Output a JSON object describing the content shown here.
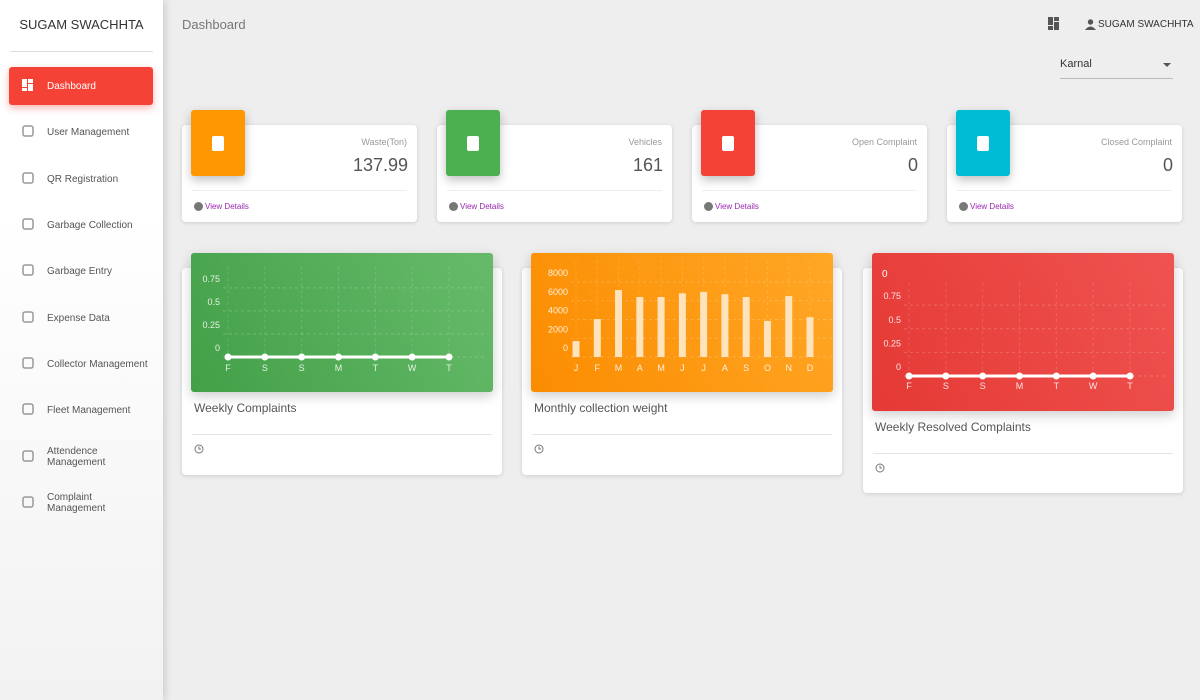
{
  "sidebar": {
    "title": "SUGAM SWACHHTA",
    "menu": [
      "Dashboard",
      "User Management",
      "QR Registration",
      "Garbage Collection",
      "Garbage Entry",
      "Expense Data",
      "Collector Management",
      "Fleet Management",
      "Attendence Management",
      "Complaint Management"
    ]
  },
  "header": {
    "page_title": "Dashboard",
    "user": "SUGAM SWACHHTA",
    "location": "Karnal"
  },
  "stats": [
    {
      "label": "Waste(Ton)",
      "value": 137.99,
      "link": "View Details"
    },
    {
      "label": "Vehicles",
      "value": 161,
      "link": "View Details"
    },
    {
      "label": "Open Complaint",
      "value": 0,
      "link": "View Details"
    },
    {
      "label": "Closed Complaint",
      "value": 0,
      "link": "View Details"
    }
  ],
  "chart_data": [
    {
      "type": "line",
      "title": "Weekly Complaints",
      "categories": [
        "F",
        "S",
        "S",
        "M",
        "T",
        "W",
        "T"
      ],
      "values": [
        0,
        0,
        0,
        0,
        0,
        0,
        0
      ],
      "ylim": [
        0,
        0.9
      ],
      "yticks": [
        0,
        0.25,
        0.5,
        0.75
      ],
      "color": "#ffffff",
      "grid": true
    },
    {
      "type": "bar",
      "title": "Monthly collection weight",
      "categories": [
        "J",
        "F",
        "M",
        "A",
        "M",
        "J",
        "J",
        "A",
        "S",
        "O",
        "N",
        "D"
      ],
      "values": [
        1700,
        4050,
        7150,
        6400,
        6400,
        6800,
        6950,
        6700,
        6400,
        3850,
        6500,
        4250
      ],
      "ylim": [
        0,
        9500
      ],
      "yticks": [
        0,
        2000,
        4000,
        6000,
        8000
      ],
      "color": "#ffe3bd",
      "grid": true
    },
    {
      "type": "line",
      "title": "Weekly Resolved Complaints",
      "annotation": "0",
      "categories": [
        "F",
        "S",
        "S",
        "M",
        "T",
        "W",
        "T"
      ],
      "values": [
        0,
        0,
        0,
        0,
        0,
        0,
        0
      ],
      "ylim": [
        0,
        0.9
      ],
      "yticks": [
        0,
        0.25,
        0.5,
        0.75
      ],
      "color": "#ffffff",
      "grid": true
    }
  ]
}
